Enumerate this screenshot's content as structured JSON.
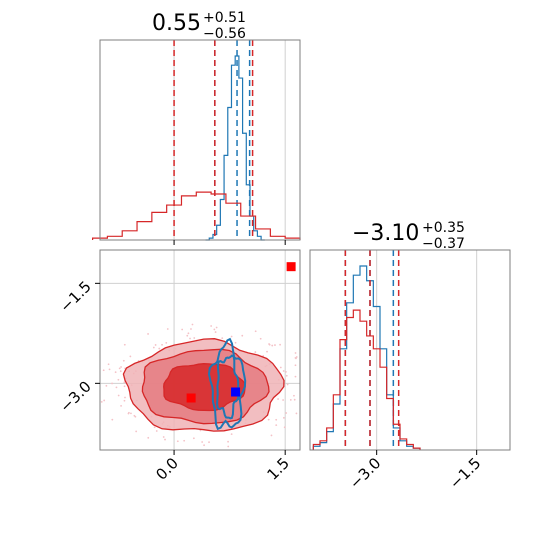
{
  "chart_data": [
    {
      "panel": "top-left-histogram",
      "type": "histogram",
      "title": {
        "value": "0.55",
        "sup": "+0.51",
        "sub": "−0.56"
      },
      "xlim": [
        -1.0,
        1.7
      ],
      "grid": true,
      "series": [
        {
          "name": "",
          "color": "#1f77b4",
          "x": [
            0.45,
            0.5,
            0.55,
            0.6,
            0.65,
            0.7,
            0.75,
            0.8,
            0.85,
            0.9,
            0.95,
            1.0,
            1.05,
            1.1,
            1.15,
            1.2
          ],
          "density": [
            0.0,
            0.01,
            0.03,
            0.08,
            0.22,
            0.46,
            0.72,
            0.95,
            1.0,
            0.88,
            0.58,
            0.3,
            0.13,
            0.05,
            0.02,
            0.0
          ],
          "dashed_lines": [
            0.55,
            0.85,
            1.02
          ]
        },
        {
          "name": "",
          "color": "#d62728",
          "x": [
            -1.0,
            -0.8,
            -0.6,
            -0.4,
            -0.2,
            0.0,
            0.2,
            0.4,
            0.6,
            0.8,
            1.0,
            1.2,
            1.4,
            1.6
          ],
          "density": [
            0.01,
            0.02,
            0.05,
            0.1,
            0.15,
            0.19,
            0.24,
            0.26,
            0.25,
            0.2,
            0.13,
            0.06,
            0.02,
            0.01
          ],
          "dashed_lines": [
            0.0,
            0.55,
            1.06
          ]
        }
      ]
    },
    {
      "panel": "bottom-left-2d",
      "type": "contour",
      "xlim": [
        -1.0,
        1.7
      ],
      "ylim": [
        -4.0,
        -1.0
      ],
      "xticks": [
        0.0,
        1.5
      ],
      "xtick_labels": [
        "0.0",
        "1.5"
      ],
      "yticks": [
        -1.5,
        -3.0
      ],
      "ytick_labels": [
        "−1.5",
        "−3.0"
      ],
      "grid": true,
      "markers": [
        {
          "x": 0.23,
          "y": -3.22,
          "color": "#ff0000",
          "shape": "square"
        },
        {
          "x": 1.58,
          "y": -1.25,
          "color": "#ff0000",
          "shape": "square"
        },
        {
          "x": 0.83,
          "y": -3.13,
          "color": "#0000ff",
          "shape": "square"
        }
      ],
      "red_contours": {
        "center": [
          0.4,
          -3.05
        ],
        "levels_rx": [
          1.05,
          0.85,
          0.55
        ],
        "levels_ry": [
          0.68,
          0.55,
          0.35
        ],
        "color": "#d62728"
      },
      "blue_contours": {
        "center": [
          0.72,
          -3.05
        ],
        "levels_rx": [
          0.22,
          0.14
        ],
        "levels_ry": [
          0.62,
          0.45
        ],
        "color": "#1f77b4"
      }
    },
    {
      "panel": "bottom-right-histogram",
      "type": "histogram",
      "title": {
        "value": "−3.10",
        "sup": "+0.35",
        "sub": "−0.37"
      },
      "xlim": [
        -4.0,
        -1.0
      ],
      "xticks": [
        -3.0,
        -1.5
      ],
      "xtick_labels": [
        "−3.0",
        "−1.5"
      ],
      "grid": true,
      "series": [
        {
          "name": "",
          "color": "#1f77b4",
          "x": [
            -3.9,
            -3.8,
            -3.7,
            -3.6,
            -3.5,
            -3.4,
            -3.3,
            -3.2,
            -3.1,
            -3.0,
            -2.9,
            -2.8,
            -2.7,
            -2.6,
            -2.5,
            -2.4
          ],
          "density": [
            0.02,
            0.04,
            0.1,
            0.25,
            0.55,
            0.8,
            0.95,
            1.0,
            0.92,
            0.78,
            0.55,
            0.3,
            0.12,
            0.05,
            0.02,
            0.01
          ],
          "dashed_lines": [
            -3.47,
            -3.1,
            -2.75
          ]
        },
        {
          "name": "",
          "color": "#d62728",
          "x": [
            -3.9,
            -3.8,
            -3.7,
            -3.6,
            -3.5,
            -3.4,
            -3.3,
            -3.2,
            -3.1,
            -3.0,
            -2.9,
            -2.8,
            -2.7,
            -2.6,
            -2.5,
            -2.4
          ],
          "density": [
            0.03,
            0.05,
            0.12,
            0.3,
            0.6,
            0.72,
            0.76,
            0.7,
            0.62,
            0.55,
            0.45,
            0.28,
            0.14,
            0.06,
            0.03,
            0.01
          ],
          "dashed_lines": [
            -3.47,
            -3.1,
            -2.67
          ]
        }
      ]
    }
  ]
}
